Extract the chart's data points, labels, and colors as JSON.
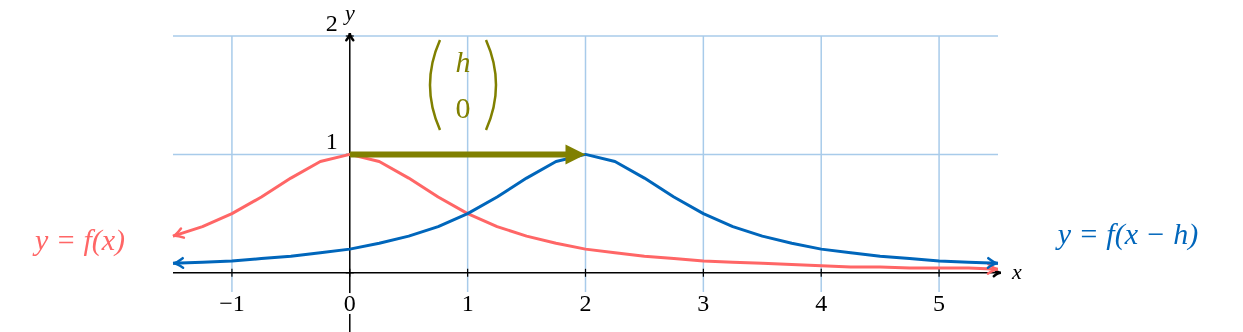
{
  "chart_data": {
    "type": "line",
    "xlabel": "x",
    "ylabel": "y",
    "x": [
      -1.5,
      -1.25,
      -1,
      -0.75,
      -0.5,
      -0.25,
      0,
      0.25,
      0.5,
      0.75,
      1,
      1.25,
      1.5,
      1.75,
      2,
      2.25,
      2.5,
      2.75,
      3,
      3.25,
      3.5,
      3.75,
      4,
      4.25,
      4.5,
      4.75,
      5,
      5.25,
      5.5
    ],
    "series": [
      {
        "name": "y = f(x)",
        "color": "#ff6666",
        "values": [
          0.31,
          0.39,
          0.5,
          0.64,
          0.8,
          0.94,
          1,
          0.94,
          0.8,
          0.64,
          0.5,
          0.39,
          0.31,
          0.25,
          0.2,
          0.17,
          0.14,
          0.12,
          0.1,
          0.09,
          0.08,
          0.07,
          0.06,
          0.05,
          0.05,
          0.04,
          0.04,
          0.04,
          0.03
        ]
      },
      {
        "name": "y = f(x − h)",
        "color": "#0066bb",
        "values": [
          0.08,
          0.09,
          0.1,
          0.12,
          0.14,
          0.17,
          0.2,
          0.25,
          0.31,
          0.39,
          0.5,
          0.64,
          0.8,
          0.94,
          1,
          0.94,
          0.8,
          0.64,
          0.5,
          0.39,
          0.31,
          0.25,
          0.2,
          0.17,
          0.14,
          0.12,
          0.1,
          0.09,
          0.08
        ]
      }
    ],
    "xlim": [
      -1.5,
      5.5
    ],
    "ylim": [
      -0.5,
      2
    ],
    "xticks": [
      {
        "value": -1,
        "label": "−1"
      },
      {
        "value": 0,
        "label": "0"
      },
      1,
      2,
      3,
      4,
      5
    ],
    "yticks": [
      {
        "value": 0,
        "label": null
      },
      1,
      2
    ],
    "grid": true,
    "marker": "none",
    "line_style": "solid",
    "annotations": [
      "h\n0"
    ]
  }
}
